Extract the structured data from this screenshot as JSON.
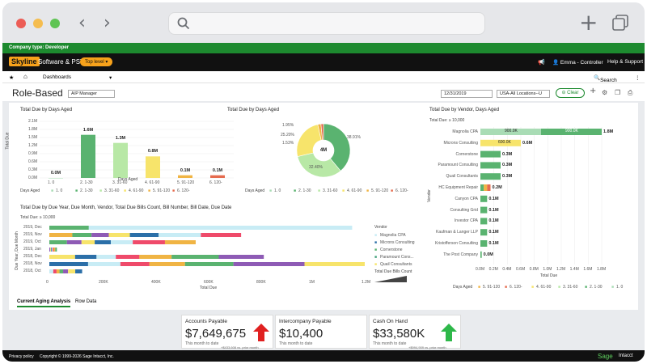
{
  "browser": {
    "search_icon": "search-icon",
    "back_icon": "chevron-left-icon",
    "forward_icon": "chevron-right-icon",
    "new_tab_icon": "plus-icon",
    "tabs_icon": "tabs-icon"
  },
  "company_bar": {
    "label": "Company type:",
    "value": "Developer"
  },
  "app_header": {
    "logo": "Skyline",
    "app_name": "Software & PST",
    "top_level": "Top level",
    "search": "Search",
    "user": "Emma - Controller",
    "help": "Help & Support"
  },
  "nav": {
    "dashboards": "Dashboards"
  },
  "page": {
    "title": "Role-Based",
    "role_select": "A/P Manager",
    "date": "12/31/2019",
    "location": "USA-All Locations--U",
    "clear": "Clear"
  },
  "colors": {
    "days_1": "#a9dcb5",
    "days_2": "#5ab370",
    "days_3": "#b8e8a6",
    "days_4": "#f7e46b",
    "days_5": "#f0b444",
    "days_6": "#e56b4e",
    "accent": "#1d8a2f"
  },
  "days_aged_chart": {
    "title": "Total Due by Days Aged",
    "ylabel": "Total Due",
    "xlabel": "Days Aged",
    "y_ticks": [
      "2.1M",
      "1.8M",
      "1.5M",
      "1.2M",
      "0.9M",
      "0.6M",
      "0.3M",
      "0.0M"
    ],
    "legend_title": "Days Aged",
    "legend": [
      "1. 0",
      "2. 1-30",
      "3. 31-60",
      "4. 61-90",
      "5. 91-120",
      "6. 120-"
    ]
  },
  "pie_chart": {
    "title": "Total Due by Days Aged",
    "center_label": "4M",
    "labels": [
      "38.91%",
      "32.40%",
      "25.20%",
      "1.95%",
      "1.53%"
    ],
    "legend_title": "Days Aged",
    "legend": [
      "1. 0",
      "2. 1-30",
      "3. 31-60",
      "4. 61-90",
      "5. 91-120",
      "6. 120-"
    ]
  },
  "vendor_chart": {
    "title": "Total Due by Vendor, Days Aged",
    "subtitle": "Total Due: ≥ 10,000",
    "ylabel": "Vendor",
    "xlabel": "Total Due",
    "x_ticks": [
      "0.0M",
      "0.2M",
      "0.4M",
      "0.6M",
      "0.8M",
      "1.0M",
      "1.2M",
      "1.4M",
      "1.6M",
      "1.8M"
    ],
    "legend_title": "Days Aged",
    "legend": [
      "5. 91-120",
      "6. 120-",
      "4. 61-90",
      "3. 31-60",
      "2. 1-30",
      "1. 0"
    ]
  },
  "year_chart": {
    "title": "Total Due by Due Year, Due Month, Vendor, Total Due Bills Count, Bill Number, Bill Date, Due Date",
    "subtitle": "Total Due: ≥ 10,000",
    "ylabel": "Due Year, Due Month",
    "xlabel": "Total Due",
    "categories": [
      "2019, Dec",
      "2019, Nov",
      "2019, Oct",
      "2019, Jan",
      "2018, Dec",
      "2018, Nov",
      "2018, Oct"
    ],
    "x_ticks": [
      "0",
      "200K",
      "400K",
      "600K",
      "800K",
      "1M",
      "1.2M"
    ],
    "legend_title": "Vendor",
    "legend": [
      "Magnolia CPA",
      "Microns Consulting",
      "Cornerstone",
      "Paramount Cons...",
      "Quail Consultants"
    ],
    "count_title": "Total Due Bills Count"
  },
  "chart_data": [
    {
      "type": "bar",
      "title": "Total Due by Days Aged",
      "categories": [
        "1. 0",
        "2. 1-30",
        "3. 31-60",
        "4. 61-90",
        "5. 91-120",
        "6. 120-"
      ],
      "values": [
        0.0,
        1.6,
        1.3,
        0.8,
        0.1,
        0.1
      ],
      "value_labels": [
        "0.0M",
        "1.6M",
        "1.3M",
        "0.8M",
        "0.1M",
        "0.1M"
      ],
      "ylabel": "Total Due",
      "xlabel": "Days Aged",
      "ylim": [
        0,
        2.1
      ],
      "colors": [
        "#a9dcb5",
        "#5ab370",
        "#b8e8a6",
        "#f7e46b",
        "#f0b444",
        "#e56b4e"
      ]
    },
    {
      "type": "pie",
      "title": "Total Due by Days Aged",
      "categories": [
        "2. 1-30",
        "3. 31-60",
        "4. 61-90",
        "5. 91-120",
        "6. 120-"
      ],
      "values": [
        38.91,
        32.4,
        25.2,
        1.95,
        1.53
      ],
      "colors": [
        "#5ab370",
        "#b8e8a6",
        "#f7e46b",
        "#f0b444",
        "#e56b4e"
      ]
    },
    {
      "type": "bar",
      "title": "Total Due by Vendor, Days Aged",
      "categories": [
        "Magnolia CPA",
        "Microns Consulting",
        "Cornerstone",
        "Paramount Consulting",
        "Quail Consultants",
        "HC Equipment Repair",
        "Canyon CPA",
        "Consulting Grid",
        "Investor CPA",
        "Kaufman & Langer LLP",
        "Kristofferson Consulting",
        "The Post Company"
      ],
      "value_labels": [
        "1.8M",
        "0.6M",
        "0.3M",
        "0.3M",
        "0.3M",
        "0.2M",
        "0.1M",
        "0.1M",
        "0.1M",
        "0.1M",
        "0.1M",
        "0.0M"
      ],
      "series": [
        {
          "name": "1. 0",
          "color": "#a9dcb5",
          "values": [
            0.9,
            0,
            0,
            0,
            0,
            0,
            0,
            0,
            0,
            0,
            0,
            0
          ]
        },
        {
          "name": "2. 1-30",
          "color": "#5ab370",
          "values": [
            0.9,
            0,
            0.3,
            0.3,
            0.3,
            0.05,
            0.1,
            0.1,
            0.1,
            0.1,
            0.1,
            0.02
          ]
        },
        {
          "name": "4. 61-90",
          "color": "#f7e46b",
          "values": [
            0,
            0.6,
            0,
            0,
            0,
            0,
            0,
            0,
            0,
            0,
            0,
            0
          ]
        },
        {
          "name": "5. 91-120",
          "color": "#f0b444",
          "values": [
            0,
            0,
            0,
            0,
            0,
            0.05,
            0,
            0,
            0,
            0,
            0,
            0
          ]
        },
        {
          "name": "6. 120-",
          "color": "#e56b4e",
          "values": [
            0,
            0,
            0,
            0,
            0,
            0.05,
            0,
            0,
            0,
            0,
            0,
            0
          ]
        }
      ],
      "inner_labels": [
        "900.0K",
        "900.0K",
        "600.0K"
      ],
      "xlabel": "Total Due",
      "ylabel": "Vendor",
      "xlim": [
        0,
        1.9
      ]
    },
    {
      "type": "bar",
      "title": "Total Due by Due Year, Due Month, Vendor, Total Due Bills Count, Bill Number, Bill Date, Due Date",
      "categories": [
        "2019, Dec",
        "2019, Nov",
        "2019, Oct",
        "2019, Jan",
        "2018, Dec",
        "2018, Nov",
        "2018, Oct"
      ],
      "totals": [
        1.2,
        0.76,
        0.58,
        0.03,
        0.85,
        1.28,
        0.13
      ],
      "xlim": [
        0,
        1.25
      ],
      "xlabel": "Total Due"
    }
  ],
  "tabs": [
    "Current Aging Analysis",
    "Row Data"
  ],
  "kpis": [
    {
      "title": "Accounts Payable",
      "value": "$7,649,675",
      "sub": "This month to date",
      "delta": "+$433,608 vs. prior month",
      "arrow": "up-arrow-red-icon"
    },
    {
      "title": "Intercompany Payable",
      "value": "$10,400",
      "sub": "This month to date",
      "delta": "",
      "arrow": ""
    },
    {
      "title": "Cash On Hand",
      "value": "$33,580K",
      "sub": "This month to date",
      "delta": "+$994,909 vs. prior month",
      "arrow": "up-arrow-green-icon"
    }
  ],
  "footer": {
    "privacy": "Privacy policy",
    "copyright": "Copyright © 1999-2026 Sage Intacct, Inc.",
    "brand": "Sage",
    "brand2": "Intacct"
  }
}
